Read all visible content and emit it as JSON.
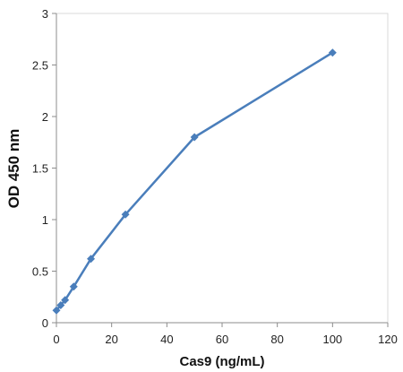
{
  "chart_data": {
    "type": "line",
    "title": "",
    "xlabel": "Cas9 (ng/mL)",
    "ylabel": "OD 450 nm",
    "xlim": [
      0,
      120
    ],
    "ylim": [
      0,
      3
    ],
    "x_ticks": [
      "0",
      "20",
      "40",
      "60",
      "80",
      "100",
      "120"
    ],
    "y_ticks": [
      "0",
      "0.5",
      "1",
      "1.5",
      "2",
      "2.5",
      "3"
    ],
    "grid": false,
    "legend": "none",
    "series": [
      {
        "color": "#4a7ebb",
        "marker": "diamond",
        "x": [
          0,
          1.56,
          3.13,
          6.25,
          12.5,
          25,
          50,
          100
        ],
        "y": [
          0.12,
          0.17,
          0.22,
          0.35,
          0.62,
          1.05,
          1.8,
          2.62
        ]
      }
    ]
  }
}
